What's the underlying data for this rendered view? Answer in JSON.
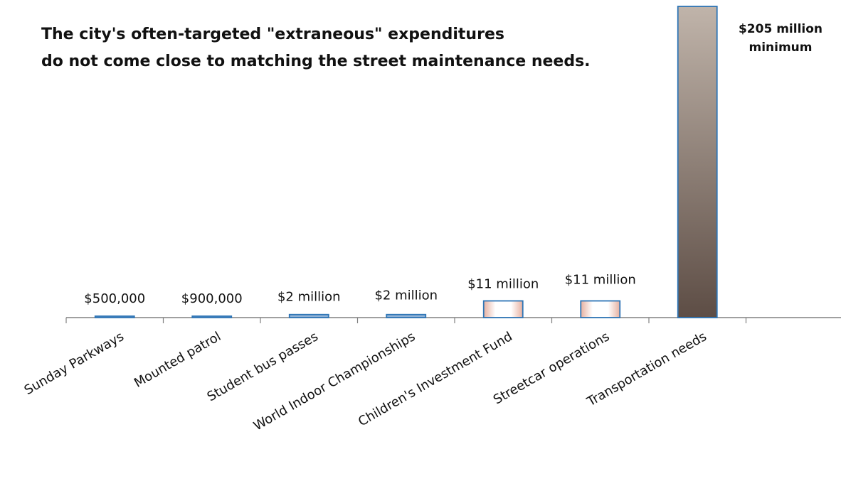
{
  "title_lines": [
    "The city's often-targeted \"extraneous\"  expenditures",
    "do not come close to matching the street maintenance needs."
  ],
  "chart_data": {
    "type": "bar",
    "title": "The city's often-targeted \"extraneous\"  expenditures do not come close to matching the street maintenance needs.",
    "xlabel": "",
    "ylabel": "",
    "categories": [
      "Sunday Parkways",
      "Mounted patrol",
      "Student bus passes",
      "World Indoor Championships",
      "Children's Investment Fund",
      "Streetcar operations",
      "Transportation needs"
    ],
    "values": [
      500000,
      900000,
      2000000,
      2000000,
      11000000,
      11000000,
      205000000
    ],
    "data_labels": [
      "$500,000",
      "$900,000",
      "$2 million",
      "$2 million",
      "$11 million",
      "$11 million",
      "$205 million minimum"
    ],
    "ylim": [
      0,
      205000000
    ],
    "grid": false,
    "legend": "none",
    "colors": {
      "bar_border": "#2e75b6",
      "small_bar_edge": "#e6b0a0",
      "tall_bar_top": "#c0b4aa",
      "tall_bar_bottom": "#5d4d45",
      "axis": "#808080"
    }
  }
}
